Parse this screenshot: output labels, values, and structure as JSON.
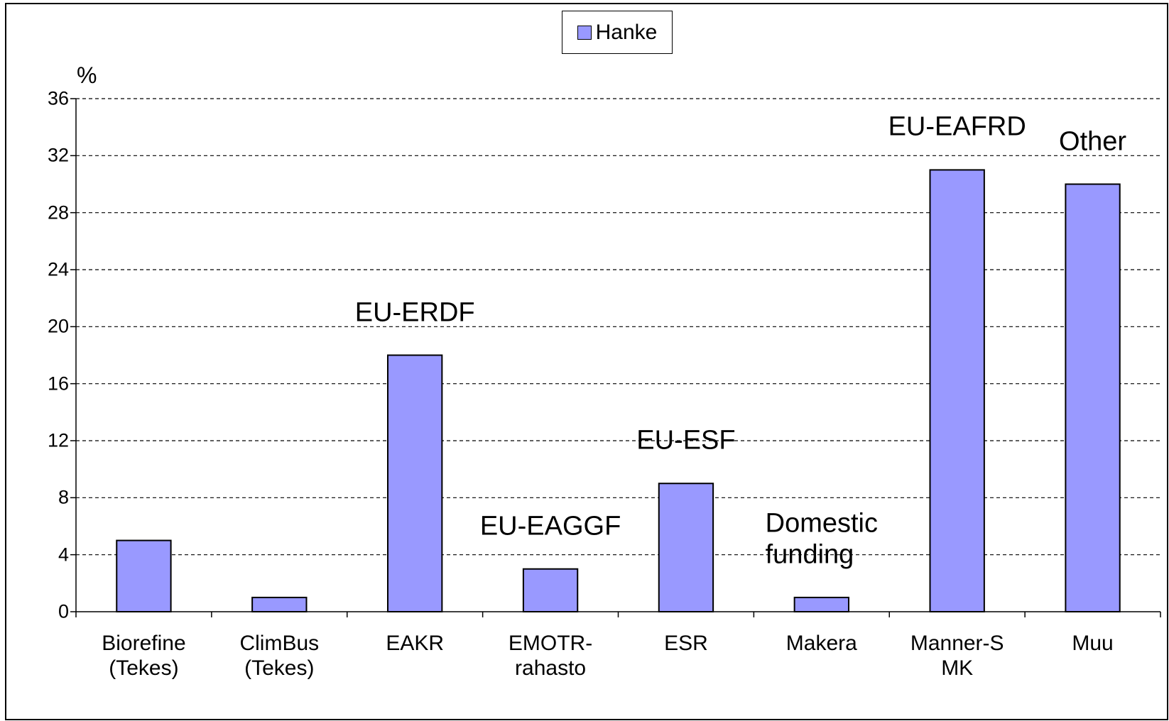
{
  "chart_data": {
    "type": "bar",
    "y_unit_label": "%",
    "categories": [
      "Biorefine\n(Tekes)",
      "ClimBus\n(Tekes)",
      "EAKR",
      "EMOTR-\nrahasto",
      "ESR",
      "Makera",
      "Manner-S\nMK",
      "Muu"
    ],
    "series": [
      {
        "name": "Hanke",
        "color": "#9999ff",
        "values": [
          5,
          1,
          18,
          3,
          9,
          1,
          31,
          30
        ]
      }
    ],
    "annotations": [
      {
        "text": "EU-ERDF",
        "category": "EAKR"
      },
      {
        "text": "EU-EAGGF",
        "category": "EMOTR-\nrahasto"
      },
      {
        "text": "EU-ESF",
        "category": "ESR"
      },
      {
        "text": "Domestic\nfunding",
        "category": "Makera"
      },
      {
        "text": "EU-EAFRD",
        "category": "Manner-S\nMK"
      },
      {
        "text": "Other",
        "category": "Muu"
      }
    ],
    "ylim": [
      0,
      36
    ],
    "yticks": [
      0,
      4,
      8,
      12,
      16,
      20,
      24,
      28,
      32,
      36
    ],
    "grid": true,
    "legend": "top"
  }
}
